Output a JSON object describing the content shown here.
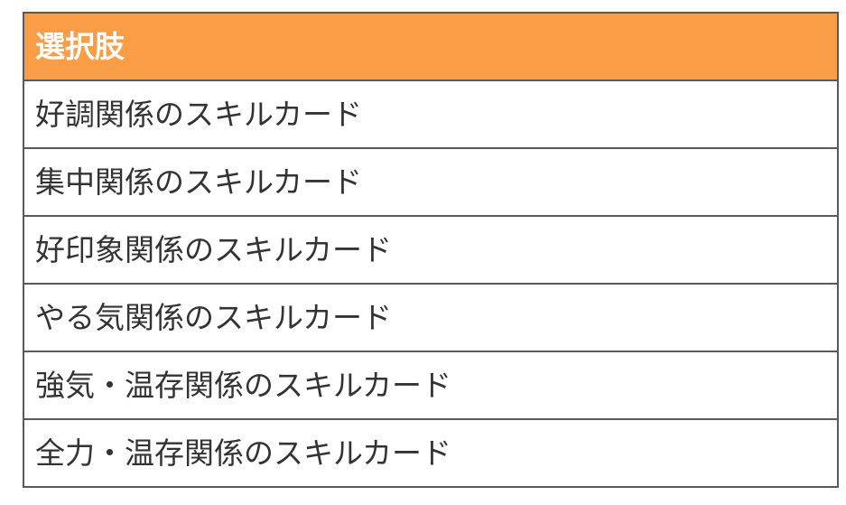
{
  "table": {
    "header": "選択肢",
    "rows": [
      "好調関係のスキルカード",
      "集中関係のスキルカード",
      "好印象関係のスキルカード",
      "やる気関係のスキルカード",
      "強気・温存関係のスキルカード",
      "全力・温存関係のスキルカード"
    ]
  },
  "colors": {
    "header_bg": "#F99E47",
    "header_text": "#FFFFFF",
    "row_bg": "#FFFFFF",
    "row_text": "#333333",
    "border": "#595959"
  }
}
